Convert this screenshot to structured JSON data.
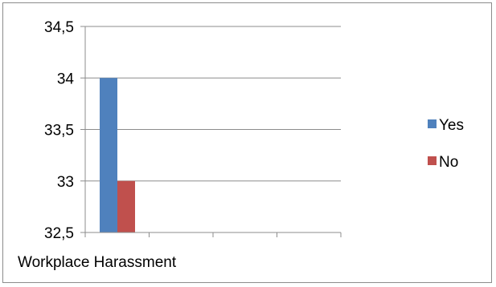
{
  "chart_data": {
    "type": "bar",
    "title": "",
    "xlabel": "",
    "ylabel": "",
    "categories": [
      "Workplace Harassment"
    ],
    "series": [
      {
        "name": "Yes",
        "values": [
          34
        ],
        "color": "#4f81bd"
      },
      {
        "name": "No",
        "values": [
          33
        ],
        "color": "#c0504d"
      }
    ],
    "ylim": [
      32.5,
      34.5
    ],
    "yticks": [
      "32,5",
      "33",
      "33,5",
      "34",
      "34,5"
    ],
    "grid": true,
    "legend": "right"
  }
}
